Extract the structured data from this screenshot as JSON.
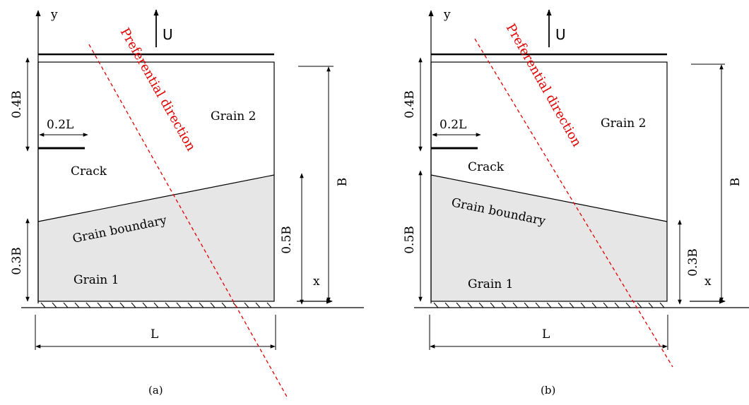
{
  "colors": {
    "grain_fill": "#e6e6e6",
    "preferential": "#e00000",
    "stroke": "#000000"
  },
  "panels": [
    {
      "caption": "(a)",
      "labels": {
        "y_axis": "y",
        "x_axis": "x",
        "velocity": "U",
        "preferential": "Preferential direction",
        "grain2": "Grain 2",
        "grain1": "Grain 1",
        "crack": "Crack",
        "boundary": "Grain boundary",
        "crack_length": "0.2L",
        "top_dim": "0.4B",
        "left_bottom_dim": "0.3B",
        "right_inner_dim": "0.5B",
        "right_outer_dim": "B",
        "width_dim": "L"
      }
    },
    {
      "caption": "(b)",
      "labels": {
        "y_axis": "y",
        "x_axis": "x",
        "velocity": "U",
        "preferential": "Preferential direction",
        "grain2": "Grain 2",
        "grain1": "Grain 1",
        "crack": "Crack",
        "boundary": "Grain boundary",
        "crack_length": "0.2L",
        "top_dim": "0.4B",
        "left_bottom_dim": "0.5B",
        "right_inner_dim": "0.3B",
        "right_outer_dim": "B",
        "width_dim": "L"
      }
    }
  ]
}
